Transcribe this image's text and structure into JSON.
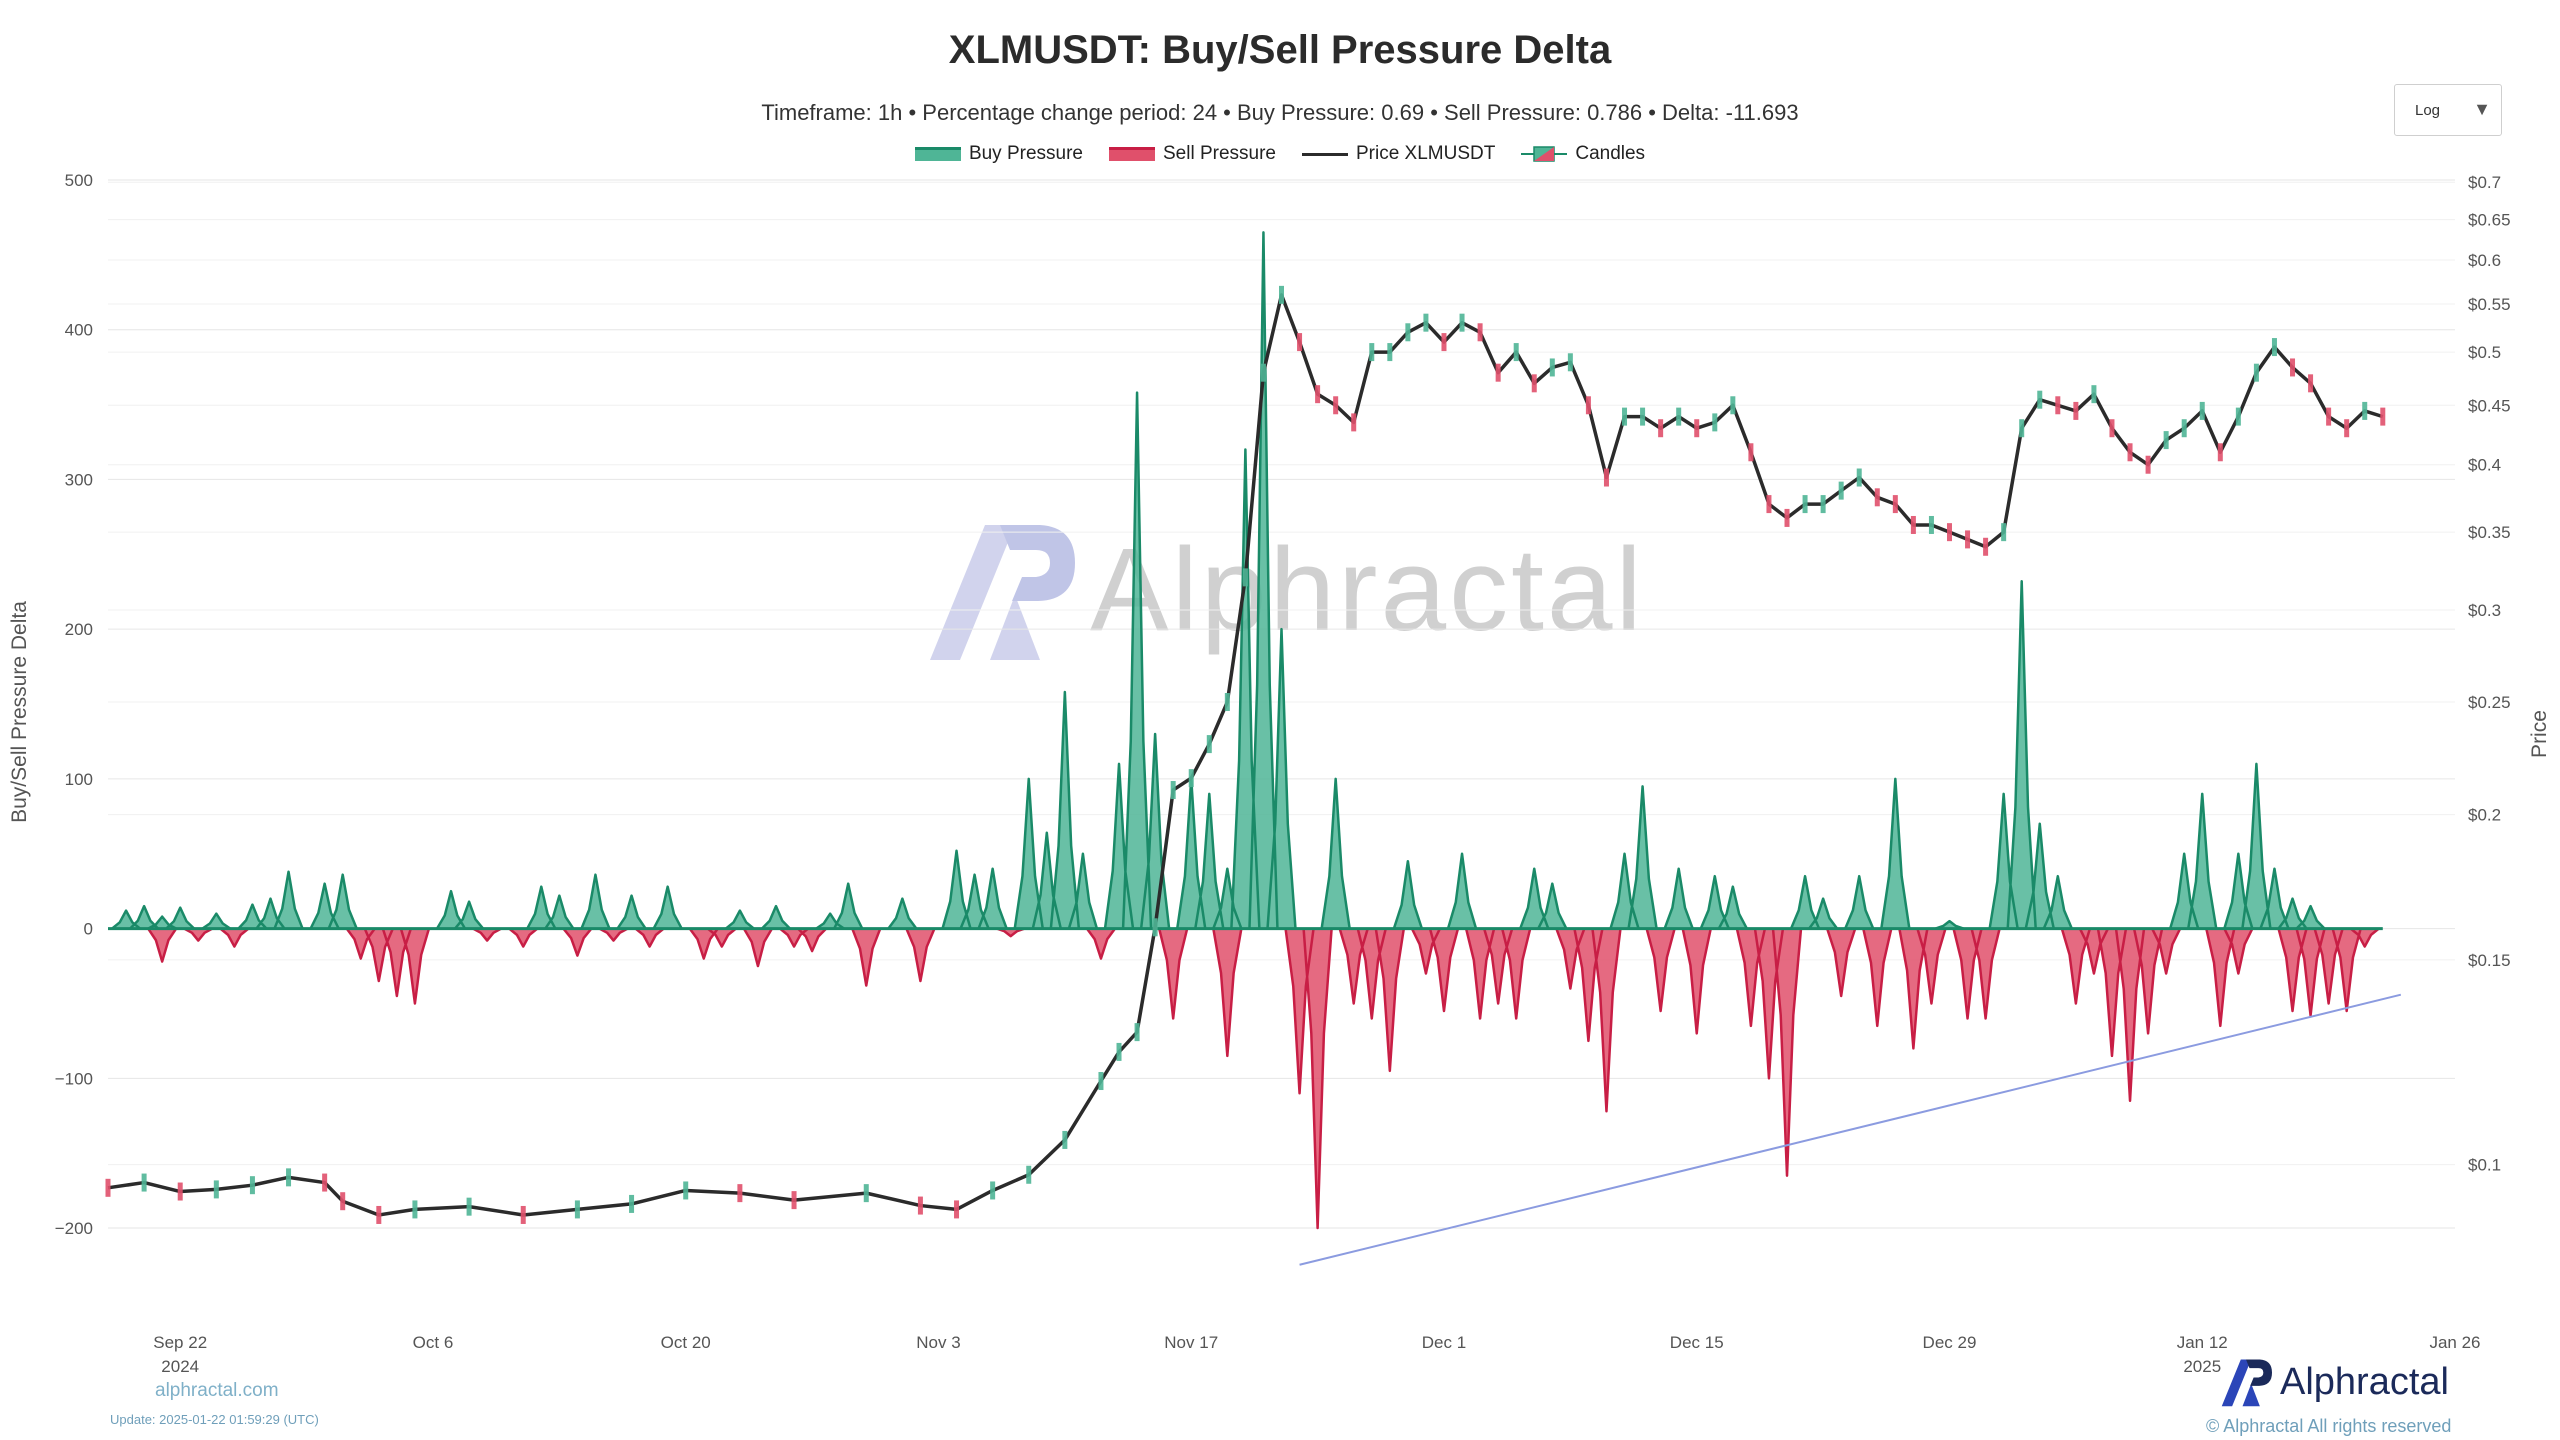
{
  "title": "XLMUSDT: Buy/Sell Pressure Delta",
  "subtitle": "Timeframe: 1h  •  Percentage change period: 24  •  Buy Pressure: 0.69 • Sell Pressure: 0.786 • Delta: -11.693",
  "scale_selector": {
    "value": "Log"
  },
  "footer": {
    "site": "alphractal.com",
    "update": "Update: 2025-01-22 01:59:29 (UTC)",
    "brand": "Alphractal",
    "copyright": "© Alphractal All rights reserved"
  },
  "watermark": "Alphractal",
  "colors": {
    "buy": "#1a8a68",
    "buy_fill": "#4fb596",
    "sell": "#c81e45",
    "sell_fill": "#e0506b",
    "price": "#2b2b2b",
    "trendline": "#8b9be0",
    "grid": "#e6e6e6",
    "brand": "#1b2a5a"
  },
  "chart_data": {
    "type": "area",
    "title": "XLMUSDT: Buy/Sell Pressure Delta",
    "ylabel_left": "Buy/Sell Pressure Delta",
    "ylabel_right": "Price",
    "left_axis": {
      "min": -220,
      "max": 510,
      "ticks": [
        500,
        400,
        300,
        200,
        100,
        0,
        -100,
        -200
      ],
      "tick_labels": [
        "500",
        "400",
        "300",
        "200",
        "100",
        "0",
        "−100",
        "−200"
      ]
    },
    "right_axis": {
      "scale": "log",
      "min": 0.078,
      "max": 0.72,
      "ticks": [
        0.7,
        0.65,
        0.6,
        0.55,
        0.5,
        0.45,
        0.4,
        0.35,
        0.3,
        0.25,
        0.2,
        0.15,
        0.1
      ],
      "tick_labels": [
        "$0.7",
        "$0.65",
        "$0.6",
        "$0.55",
        "$0.5",
        "$0.45",
        "$0.4",
        "$0.35",
        "$0.3",
        "$0.25",
        "$0.2",
        "$0.15",
        "$0.1"
      ]
    },
    "x_axis": {
      "start": "2024-09-18",
      "end": "2025-01-26",
      "ticks": [
        {
          "date": "2024-09-22",
          "label": "Sep 22",
          "sublabel": "2024"
        },
        {
          "date": "2024-10-06",
          "label": "Oct 6",
          "sublabel": ""
        },
        {
          "date": "2024-10-20",
          "label": "Oct 20",
          "sublabel": ""
        },
        {
          "date": "2024-11-03",
          "label": "Nov 3",
          "sublabel": ""
        },
        {
          "date": "2024-11-17",
          "label": "Nov 17",
          "sublabel": ""
        },
        {
          "date": "2024-12-01",
          "label": "Dec 1",
          "sublabel": ""
        },
        {
          "date": "2024-12-15",
          "label": "Dec 15",
          "sublabel": ""
        },
        {
          "date": "2024-12-29",
          "label": "Dec 29",
          "sublabel": ""
        },
        {
          "date": "2025-01-12",
          "label": "Jan 12",
          "sublabel": "2025"
        },
        {
          "date": "2025-01-26",
          "label": "Jan 26",
          "sublabel": ""
        }
      ]
    },
    "legend": [
      "Buy Pressure",
      "Sell Pressure",
      "Price XLMUSDT",
      "Candles"
    ],
    "series": [
      {
        "name": "Buy Pressure",
        "axis": "left",
        "points": [
          [
            "2024-09-19",
            12
          ],
          [
            "2024-09-20",
            15
          ],
          [
            "2024-09-21",
            8
          ],
          [
            "2024-09-22",
            14
          ],
          [
            "2024-09-24",
            10
          ],
          [
            "2024-09-26",
            16
          ],
          [
            "2024-09-27",
            20
          ],
          [
            "2024-09-28",
            38
          ],
          [
            "2024-09-30",
            30
          ],
          [
            "2024-10-01",
            36
          ],
          [
            "2024-10-07",
            25
          ],
          [
            "2024-10-08",
            18
          ],
          [
            "2024-10-12",
            28
          ],
          [
            "2024-10-13",
            22
          ],
          [
            "2024-10-15",
            36
          ],
          [
            "2024-10-17",
            22
          ],
          [
            "2024-10-19",
            28
          ],
          [
            "2024-10-23",
            12
          ],
          [
            "2024-10-25",
            15
          ],
          [
            "2024-10-28",
            10
          ],
          [
            "2024-10-29",
            30
          ],
          [
            "2024-11-01",
            20
          ],
          [
            "2024-11-04",
            52
          ],
          [
            "2024-11-05",
            36
          ],
          [
            "2024-11-06",
            40
          ],
          [
            "2024-11-08",
            100
          ],
          [
            "2024-11-09",
            64
          ],
          [
            "2024-11-10",
            158
          ],
          [
            "2024-11-11",
            50
          ],
          [
            "2024-11-13",
            110
          ],
          [
            "2024-11-14",
            358
          ],
          [
            "2024-11-15",
            130
          ],
          [
            "2024-11-17",
            100
          ],
          [
            "2024-11-18",
            90
          ],
          [
            "2024-11-19",
            40
          ],
          [
            "2024-11-20",
            320
          ],
          [
            "2024-11-21",
            465
          ],
          [
            "2024-11-22",
            200
          ],
          [
            "2024-11-25",
            100
          ],
          [
            "2024-11-29",
            45
          ],
          [
            "2024-12-02",
            50
          ],
          [
            "2024-12-06",
            40
          ],
          [
            "2024-12-07",
            30
          ],
          [
            "2024-12-11",
            50
          ],
          [
            "2024-12-12",
            95
          ],
          [
            "2024-12-14",
            40
          ],
          [
            "2024-12-16",
            35
          ],
          [
            "2024-12-17",
            28
          ],
          [
            "2024-12-21",
            35
          ],
          [
            "2024-12-22",
            20
          ],
          [
            "2024-12-24",
            35
          ],
          [
            "2024-12-26",
            100
          ],
          [
            "2024-12-29",
            5
          ],
          [
            "2025-01-01",
            90
          ],
          [
            "2025-01-02",
            232
          ],
          [
            "2025-01-03",
            70
          ],
          [
            "2025-01-04",
            35
          ],
          [
            "2025-01-11",
            50
          ],
          [
            "2025-01-12",
            90
          ],
          [
            "2025-01-14",
            50
          ],
          [
            "2025-01-15",
            110
          ],
          [
            "2025-01-16",
            40
          ],
          [
            "2025-01-17",
            20
          ],
          [
            "2025-01-18",
            15
          ]
        ]
      },
      {
        "name": "Sell Pressure",
        "axis": "left",
        "points": [
          [
            "2024-09-21",
            -22
          ],
          [
            "2024-09-23",
            -8
          ],
          [
            "2024-09-25",
            -12
          ],
          [
            "2024-10-02",
            -20
          ],
          [
            "2024-10-03",
            -35
          ],
          [
            "2024-10-04",
            -45
          ],
          [
            "2024-10-05",
            -50
          ],
          [
            "2024-10-09",
            -8
          ],
          [
            "2024-10-11",
            -12
          ],
          [
            "2024-10-14",
            -18
          ],
          [
            "2024-10-16",
            -8
          ],
          [
            "2024-10-18",
            -12
          ],
          [
            "2024-10-21",
            -20
          ],
          [
            "2024-10-22",
            -12
          ],
          [
            "2024-10-24",
            -25
          ],
          [
            "2024-10-26",
            -12
          ],
          [
            "2024-10-27",
            -15
          ],
          [
            "2024-10-30",
            -38
          ],
          [
            "2024-11-02",
            -35
          ],
          [
            "2024-11-07",
            -5
          ],
          [
            "2024-11-12",
            -20
          ],
          [
            "2024-11-16",
            -60
          ],
          [
            "2024-11-19",
            -85
          ],
          [
            "2024-11-23",
            -110
          ],
          [
            "2024-11-24",
            -200
          ],
          [
            "2024-11-26",
            -50
          ],
          [
            "2024-11-27",
            -60
          ],
          [
            "2024-11-28",
            -95
          ],
          [
            "2024-11-30",
            -30
          ],
          [
            "2024-12-01",
            -55
          ],
          [
            "2024-12-03",
            -60
          ],
          [
            "2024-12-04",
            -50
          ],
          [
            "2024-12-05",
            -60
          ],
          [
            "2024-12-08",
            -40
          ],
          [
            "2024-12-09",
            -75
          ],
          [
            "2024-12-10",
            -122
          ],
          [
            "2024-12-13",
            -55
          ],
          [
            "2024-12-15",
            -70
          ],
          [
            "2024-12-18",
            -65
          ],
          [
            "2024-12-19",
            -100
          ],
          [
            "2024-12-20",
            -165
          ],
          [
            "2024-12-23",
            -45
          ],
          [
            "2024-12-25",
            -65
          ],
          [
            "2024-12-27",
            -80
          ],
          [
            "2024-12-28",
            -50
          ],
          [
            "2024-12-30",
            -60
          ],
          [
            "2024-12-31",
            -60
          ],
          [
            "2025-01-05",
            -50
          ],
          [
            "2025-01-06",
            -30
          ],
          [
            "2025-01-07",
            -85
          ],
          [
            "2025-01-08",
            -115
          ],
          [
            "2025-01-09",
            -70
          ],
          [
            "2025-01-10",
            -30
          ],
          [
            "2025-01-13",
            -65
          ],
          [
            "2025-01-14",
            -30
          ],
          [
            "2025-01-17",
            -55
          ],
          [
            "2025-01-18",
            -58
          ],
          [
            "2025-01-19",
            -50
          ],
          [
            "2025-01-20",
            -55
          ],
          [
            "2025-01-21",
            -12
          ]
        ]
      },
      {
        "name": "Price XLMUSDT",
        "axis": "right",
        "points": [
          [
            "2024-09-18",
            0.0955
          ],
          [
            "2024-09-20",
            0.0965
          ],
          [
            "2024-09-22",
            0.0948
          ],
          [
            "2024-09-24",
            0.0952
          ],
          [
            "2024-09-26",
            0.096
          ],
          [
            "2024-09-28",
            0.0975
          ],
          [
            "2024-09-30",
            0.0965
          ],
          [
            "2024-10-01",
            0.093
          ],
          [
            "2024-10-03",
            0.0905
          ],
          [
            "2024-10-05",
            0.0915
          ],
          [
            "2024-10-08",
            0.092
          ],
          [
            "2024-10-11",
            0.0905
          ],
          [
            "2024-10-14",
            0.0915
          ],
          [
            "2024-10-17",
            0.0925
          ],
          [
            "2024-10-20",
            0.095
          ],
          [
            "2024-10-23",
            0.0945
          ],
          [
            "2024-10-26",
            0.0932
          ],
          [
            "2024-10-30",
            0.0945
          ],
          [
            "2024-11-02",
            0.0922
          ],
          [
            "2024-11-04",
            0.0915
          ],
          [
            "2024-11-06",
            0.095
          ],
          [
            "2024-11-08",
            0.098
          ],
          [
            "2024-11-10",
            0.105
          ],
          [
            "2024-11-12",
            0.118
          ],
          [
            "2024-11-13",
            0.125
          ],
          [
            "2024-11-14",
            0.13
          ],
          [
            "2024-11-15",
            0.16
          ],
          [
            "2024-11-16",
            0.21
          ],
          [
            "2024-11-17",
            0.215
          ],
          [
            "2024-11-18",
            0.23
          ],
          [
            "2024-11-19",
            0.25
          ],
          [
            "2024-11-20",
            0.32
          ],
          [
            "2024-11-21",
            0.48
          ],
          [
            "2024-11-22",
            0.56
          ],
          [
            "2024-11-23",
            0.51
          ],
          [
            "2024-11-24",
            0.46
          ],
          [
            "2024-11-25",
            0.45
          ],
          [
            "2024-11-26",
            0.435
          ],
          [
            "2024-11-27",
            0.5
          ],
          [
            "2024-11-28",
            0.5
          ],
          [
            "2024-11-29",
            0.52
          ],
          [
            "2024-11-30",
            0.53
          ],
          [
            "2024-12-01",
            0.51
          ],
          [
            "2024-12-02",
            0.53
          ],
          [
            "2024-12-03",
            0.52
          ],
          [
            "2024-12-04",
            0.48
          ],
          [
            "2024-12-05",
            0.5
          ],
          [
            "2024-12-06",
            0.47
          ],
          [
            "2024-12-07",
            0.485
          ],
          [
            "2024-12-08",
            0.49
          ],
          [
            "2024-12-09",
            0.45
          ],
          [
            "2024-12-10",
            0.39
          ],
          [
            "2024-12-11",
            0.44
          ],
          [
            "2024-12-12",
            0.44
          ],
          [
            "2024-12-13",
            0.43
          ],
          [
            "2024-12-14",
            0.44
          ],
          [
            "2024-12-15",
            0.43
          ],
          [
            "2024-12-16",
            0.435
          ],
          [
            "2024-12-17",
            0.45
          ],
          [
            "2024-12-18",
            0.41
          ],
          [
            "2024-12-19",
            0.37
          ],
          [
            "2024-12-20",
            0.36
          ],
          [
            "2024-12-21",
            0.37
          ],
          [
            "2024-12-22",
            0.37
          ],
          [
            "2024-12-23",
            0.38
          ],
          [
            "2024-12-24",
            0.39
          ],
          [
            "2024-12-25",
            0.375
          ],
          [
            "2024-12-26",
            0.37
          ],
          [
            "2024-12-27",
            0.355
          ],
          [
            "2024-12-28",
            0.355
          ],
          [
            "2024-12-29",
            0.35
          ],
          [
            "2024-12-30",
            0.345
          ],
          [
            "2024-12-31",
            0.34
          ],
          [
            "2025-01-01",
            0.35
          ],
          [
            "2025-01-02",
            0.43
          ],
          [
            "2025-01-03",
            0.455
          ],
          [
            "2025-01-04",
            0.45
          ],
          [
            "2025-01-05",
            0.445
          ],
          [
            "2025-01-06",
            0.46
          ],
          [
            "2025-01-07",
            0.43
          ],
          [
            "2025-01-08",
            0.41
          ],
          [
            "2025-01-09",
            0.4
          ],
          [
            "2025-01-10",
            0.42
          ],
          [
            "2025-01-11",
            0.43
          ],
          [
            "2025-01-12",
            0.445
          ],
          [
            "2025-01-13",
            0.41
          ],
          [
            "2025-01-14",
            0.44
          ],
          [
            "2025-01-15",
            0.48
          ],
          [
            "2025-01-16",
            0.505
          ],
          [
            "2025-01-17",
            0.485
          ],
          [
            "2025-01-18",
            0.47
          ],
          [
            "2025-01-19",
            0.44
          ],
          [
            "2025-01-20",
            0.43
          ],
          [
            "2025-01-21",
            0.445
          ],
          [
            "2025-01-22",
            0.44
          ]
        ]
      }
    ],
    "trendline": {
      "axis": "right",
      "from": [
        "2024-11-23",
        0.082
      ],
      "to": [
        "2025-01-23",
        0.14
      ]
    },
    "grid": true,
    "legend_position": "top-center"
  }
}
